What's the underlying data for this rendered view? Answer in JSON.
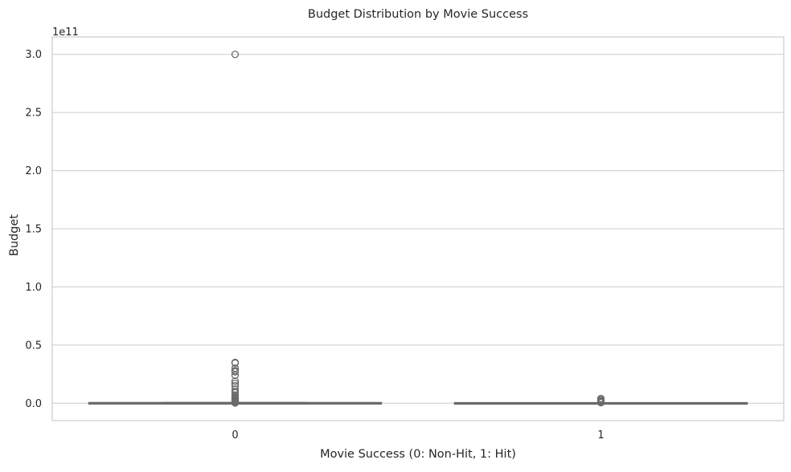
{
  "chart_data": {
    "type": "box",
    "title": "Budget Distribution by Movie Success",
    "xlabel": "Movie Success (0: Non-Hit, 1: Hit)",
    "ylabel": "Budget",
    "y_offset_label": "1e11",
    "categories": [
      "0",
      "1"
    ],
    "y_tick_labels": [
      "0.0",
      "0.5",
      "1.0",
      "1.5",
      "2.0",
      "2.5",
      "3.0"
    ],
    "y_ticks": [
      0.0,
      0.5,
      1.0,
      1.5,
      2.0,
      2.5,
      3.0
    ],
    "ylim": [
      -0.15,
      3.15
    ],
    "y_unit_multiplier": 100000000000,
    "grid": true,
    "colors": {
      "box": "#6b6b6b",
      "grid": "#cccccc",
      "spine": "#cccccc",
      "text": "#262626"
    },
    "boxes": [
      {
        "category": "0",
        "whisker_low": 0.0,
        "q1": 0.0,
        "median": 0.0,
        "q3": 0.002,
        "whisker_high": 0.005,
        "outliers": [
          3.0,
          0.35,
          0.345,
          0.3,
          0.28,
          0.27,
          0.24,
          0.19,
          0.17,
          0.15,
          0.12,
          0.1,
          0.09,
          0.07,
          0.06,
          0.05,
          0.045,
          0.04,
          0.035,
          0.03,
          0.025,
          0.02,
          0.015,
          0.01,
          0.008,
          0.006,
          0.004,
          0.002
        ]
      },
      {
        "category": "1",
        "whisker_low": 0.0,
        "q1": 0.0,
        "median": 0.0,
        "q3": 0.001,
        "whisker_high": 0.003,
        "outliers": [
          0.04,
          0.03,
          0.02,
          0.015,
          0.01,
          0.005
        ]
      }
    ]
  }
}
